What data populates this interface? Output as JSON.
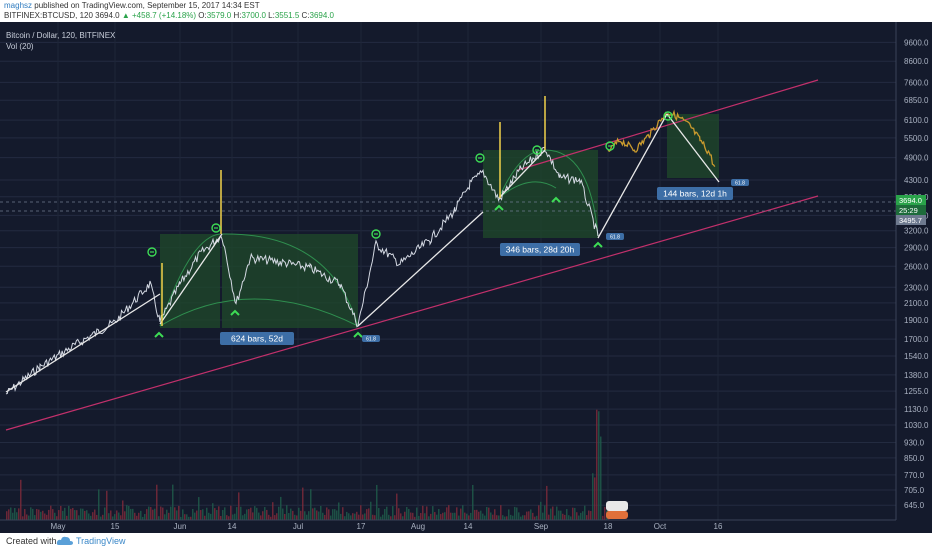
{
  "header": {
    "author": "maghsz",
    "published_text": "published on TradingView.com, September 15, 2017 14:34 EST",
    "symbol_interval": "BITFINEX:BTCUSD, 120",
    "last": "3694.0",
    "change": "▲ +458.7 (+14.18%)",
    "o_label": "O:",
    "o_val": "3579.0",
    "h_label": "H:",
    "h_val": "3700.0",
    "l_label": "L:",
    "l_val": "3551.5",
    "c_label": "C:",
    "c_val": "3694.0"
  },
  "overlay": {
    "title": "Bitcoin / Dollar, 120, BITFINEX",
    "vol": "Vol (20)"
  },
  "footer": {
    "created": "Created with",
    "brand": "TradingView"
  },
  "colors": {
    "background": "#141a2c",
    "price_line": "#d4d9e3",
    "trendline": "#e8e8e8",
    "channel": "#c2306b",
    "green_box": "#1f4a2a",
    "arc": "#2f8f4f",
    "spike": "#f2d24b",
    "marker": "#3ddc55",
    "label_bg": "#3d6ea6",
    "projection": "#c99a2e",
    "vol_down": "#7a2a3a",
    "vol_up": "#1f5a4a"
  },
  "chart_data": {
    "type": "line",
    "title": "Bitcoin / Dollar, 120, BITFINEX",
    "y_scale": "log",
    "ylim": [
      620,
      10200
    ],
    "y_ticks": [
      "9600.0",
      "8600.0",
      "7600.0",
      "6850.0",
      "6100.0",
      "5500.0",
      "4900.0",
      "4300.0",
      "3900.0",
      "3500.0",
      "3200.0",
      "2900.0",
      "2600.0",
      "2300.0",
      "2100.0",
      "1900.0",
      "1700.0",
      "1540.0",
      "1380.0",
      "1255.0",
      "1130.0",
      "1030.0",
      "930.0",
      "850.0",
      "770.0",
      "705.0",
      "645.0"
    ],
    "x_tick_labels": [
      "May",
      "15",
      "Jun",
      "14",
      "Jul",
      "17",
      "Aug",
      "14",
      "Sep",
      "18",
      "Oct",
      "16"
    ],
    "price_labels": {
      "current": "3694.0",
      "countdown": "25:29",
      "level": "3495.7"
    },
    "series": [
      {
        "x": [
          "May 1",
          "May 15",
          "May 25",
          "Jun 1",
          "Jun 11",
          "Jun 15",
          "Jul 1",
          "Jul 16",
          "Jul 20",
          "Aug 1",
          "Aug 14",
          "Aug 20",
          "Sep 1",
          "Sep 14",
          "Sep 25",
          "Oct 1",
          "Oct 7",
          "Oct 16"
        ],
        "values": [
          1280,
          1750,
          2400,
          2200,
          2950,
          2100,
          2500,
          1900,
          2850,
          2750,
          4300,
          3600,
          4800,
          3000,
          4800,
          4600,
          6000,
          4200
        ]
      }
    ],
    "annotations": [
      "624 bars, 52d",
      "346 bars, 28d 20h",
      "144 bars, 12d 1h",
      "61.8",
      "61.8",
      "61.8"
    ]
  }
}
